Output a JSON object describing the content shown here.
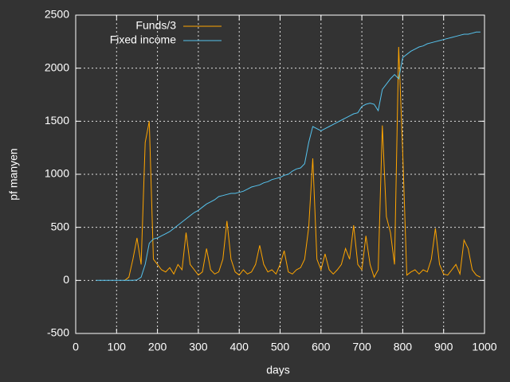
{
  "chart_data": {
    "type": "line",
    "xlabel": "days",
    "ylabel": "pf manyen",
    "xlim": [
      0,
      1000
    ],
    "ylim": [
      -500,
      2500
    ],
    "xticks": [
      0,
      100,
      200,
      300,
      400,
      500,
      600,
      700,
      800,
      900,
      1000
    ],
    "yticks": [
      -500,
      0,
      500,
      1000,
      1500,
      2000,
      2500
    ],
    "grid": true,
    "legend": "top-left",
    "x": [
      50,
      60,
      70,
      80,
      90,
      100,
      110,
      120,
      130,
      140,
      150,
      160,
      170,
      180,
      190,
      200,
      210,
      220,
      230,
      240,
      250,
      260,
      270,
      280,
      290,
      300,
      310,
      320,
      330,
      340,
      350,
      360,
      370,
      380,
      390,
      400,
      410,
      420,
      430,
      440,
      450,
      460,
      470,
      480,
      490,
      500,
      510,
      520,
      530,
      540,
      550,
      560,
      570,
      580,
      590,
      600,
      610,
      620,
      630,
      640,
      650,
      660,
      670,
      680,
      690,
      700,
      710,
      720,
      730,
      740,
      750,
      760,
      770,
      780,
      790,
      800,
      810,
      820,
      830,
      840,
      850,
      860,
      870,
      880,
      890,
      900,
      910,
      920,
      930,
      940,
      950,
      960,
      970,
      980,
      990
    ],
    "series": [
      {
        "name": "Funds/3",
        "color": "#ffa500",
        "values": [
          null,
          null,
          null,
          null,
          null,
          null,
          null,
          0,
          30,
          200,
          400,
          150,
          1300,
          1500,
          200,
          150,
          100,
          80,
          120,
          60,
          150,
          100,
          450,
          150,
          100,
          50,
          80,
          300,
          100,
          60,
          80,
          200,
          560,
          200,
          80,
          50,
          100,
          60,
          80,
          150,
          330,
          150,
          80,
          100,
          60,
          150,
          280,
          80,
          60,
          100,
          120,
          200,
          500,
          1150,
          200,
          100,
          250,
          100,
          60,
          100,
          150,
          300,
          200,
          520,
          150,
          100,
          420,
          150,
          30,
          100,
          1460,
          600,
          450,
          150,
          2200,
          1200,
          50,
          80,
          100,
          60,
          100,
          80,
          200,
          490,
          150,
          60,
          50,
          100,
          150,
          60,
          380,
          300,
          100,
          50,
          30
        ]
      },
      {
        "name": "Fixed income",
        "color": "#56c3ee",
        "values": [
          0,
          0,
          0,
          0,
          0,
          0,
          0,
          0,
          0,
          0,
          5,
          30,
          150,
          350,
          390,
          400,
          420,
          440,
          460,
          490,
          520,
          550,
          580,
          610,
          640,
          660,
          690,
          720,
          740,
          760,
          790,
          800,
          810,
          820,
          820,
          830,
          840,
          860,
          880,
          890,
          900,
          920,
          930,
          950,
          960,
          970,
          990,
          1000,
          1030,
          1050,
          1060,
          1100,
          1300,
          1450,
          1430,
          1410,
          1430,
          1450,
          1470,
          1490,
          1510,
          1530,
          1550,
          1570,
          1580,
          1640,
          1660,
          1670,
          1660,
          1600,
          1800,
          1850,
          1900,
          1940,
          1900,
          2100,
          2130,
          2160,
          2180,
          2200,
          2210,
          2230,
          2240,
          2250,
          2260,
          2270,
          2280,
          2290,
          2300,
          2310,
          2320,
          2320,
          2330,
          2340,
          2340
        ]
      }
    ]
  }
}
